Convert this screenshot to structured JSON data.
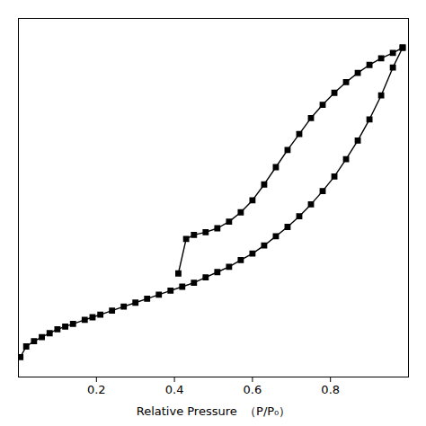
{
  "chart_data": {
    "type": "line",
    "xlabel": "Relative Pressure  （P/P₀）",
    "xlim": [
      0.0,
      1.0
    ],
    "ylim": [
      0,
      270
    ],
    "xticks": [
      0.2,
      0.4,
      0.6,
      0.8
    ],
    "yticks": [],
    "tick_labels": "x",
    "grid": false,
    "series": [
      {
        "color": "#000000",
        "marker": "square",
        "line_style": "solid",
        "x": [
          0.005,
          0.02,
          0.04,
          0.06,
          0.08,
          0.1,
          0.12,
          0.14,
          0.17,
          0.19,
          0.21,
          0.24,
          0.27,
          0.3,
          0.33,
          0.36,
          0.39,
          0.42,
          0.45,
          0.48,
          0.51,
          0.54,
          0.57,
          0.6,
          0.63,
          0.66,
          0.69,
          0.72,
          0.75,
          0.78,
          0.81,
          0.84,
          0.87,
          0.9,
          0.93,
          0.96,
          0.985
        ],
        "values": [
          15,
          23,
          27,
          30,
          33,
          36,
          38,
          40,
          43,
          45,
          47,
          50,
          53,
          56,
          59,
          62,
          65,
          68,
          71,
          75,
          79,
          83,
          88,
          93,
          99,
          106,
          113,
          121,
          130,
          140,
          151,
          164,
          178,
          194,
          212,
          233,
          248
        ]
      },
      {
        "color": "#000000",
        "marker": "square",
        "line_style": "solid",
        "x": [
          0.985,
          0.96,
          0.93,
          0.9,
          0.87,
          0.84,
          0.81,
          0.78,
          0.75,
          0.72,
          0.69,
          0.66,
          0.63,
          0.6,
          0.57,
          0.54,
          0.51,
          0.48,
          0.45,
          0.43,
          0.41
        ],
        "values": [
          248,
          244,
          240,
          235,
          229,
          222,
          214,
          205,
          195,
          183,
          171,
          158,
          145,
          133,
          124,
          117,
          112,
          109,
          107,
          104,
          78
        ]
      }
    ]
  }
}
